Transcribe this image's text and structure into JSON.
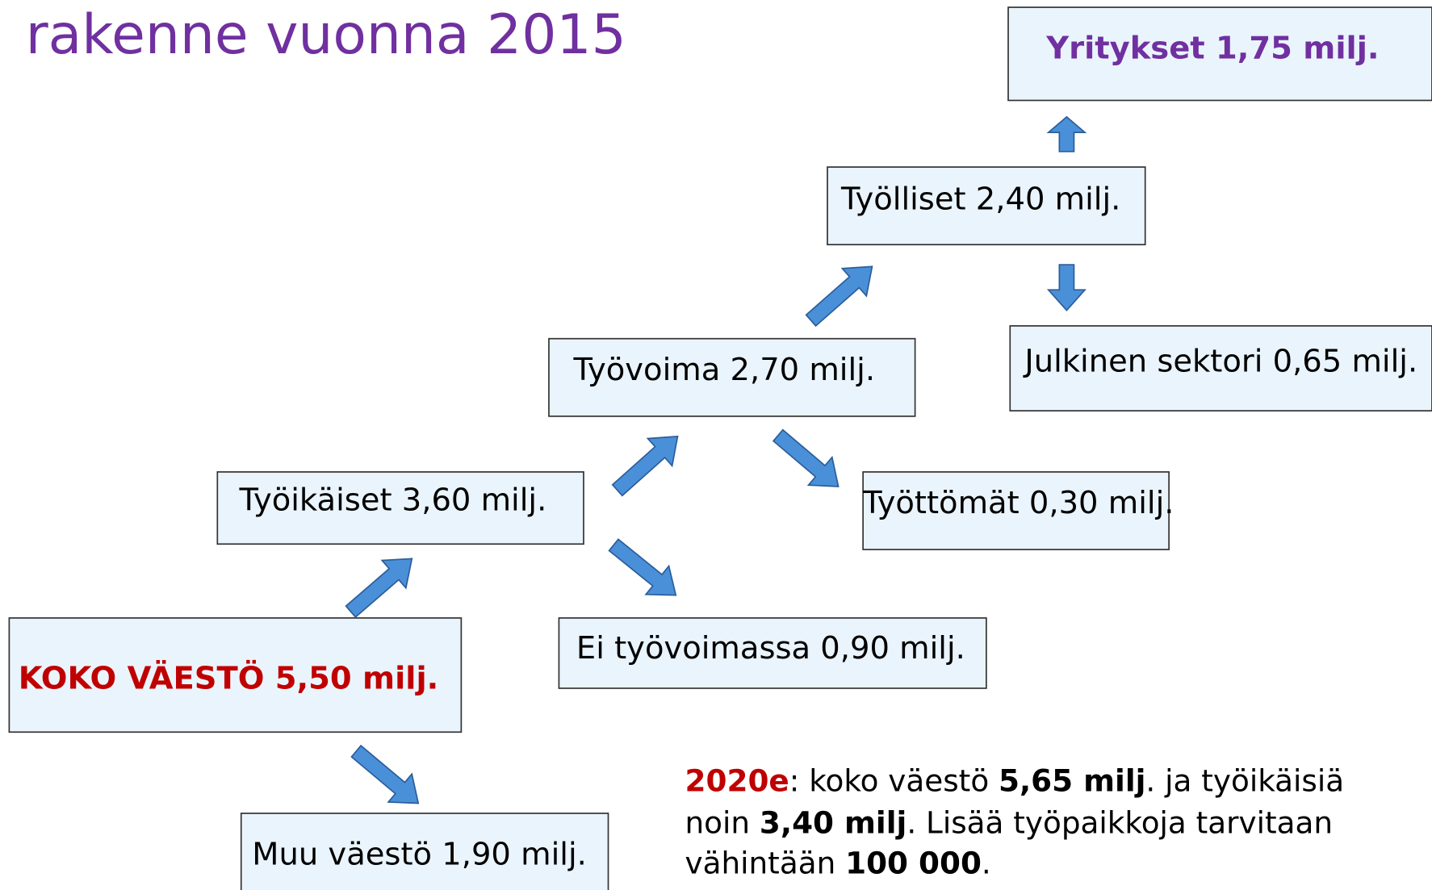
{
  "title": "rakenne vuonna 2015",
  "nodes": [
    {
      "label": "Yritykset 1,75 milj."
    },
    {
      "label": "Työlliset 2,40 milj."
    },
    {
      "label": "Julkinen sektori 0,65 milj."
    },
    {
      "label": "Työvoima 2,70 milj."
    },
    {
      "label": "Työttömät 0,30 milj."
    },
    {
      "label": "Työikäiset 3,60 milj."
    },
    {
      "label": "Ei työvoimassa 0,90 milj."
    },
    {
      "label": "KOKO VÄESTÖ 5,50 milj."
    },
    {
      "label": "Muu väestö 1,90 milj."
    }
  ],
  "note": {
    "lines": [
      [
        "2020e",
        ": koko väestö ",
        "5,65 milj",
        ". ja työikäisiä"
      ],
      [
        "noin ",
        "3,40 milj",
        ". Lisää työpaikkoja tarvitaan"
      ],
      [
        "vähintään ",
        "100 000",
        "."
      ]
    ]
  }
}
